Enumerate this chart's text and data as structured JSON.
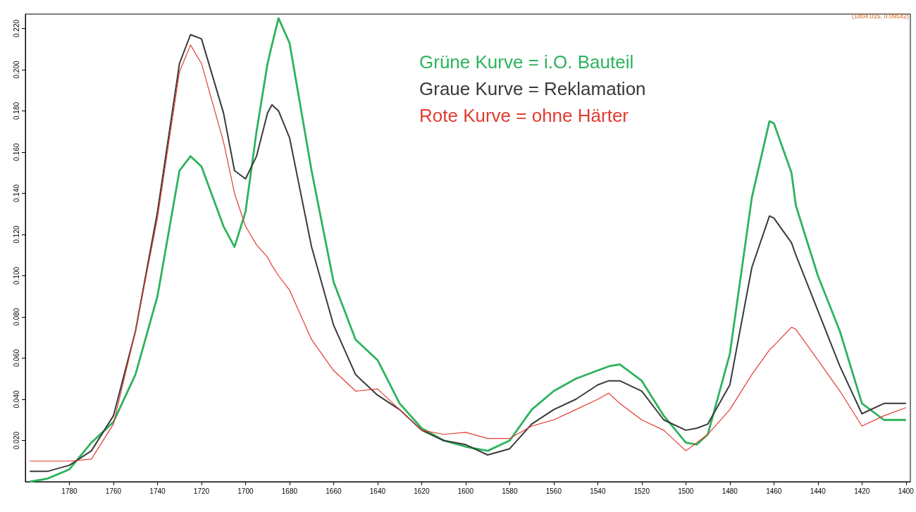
{
  "chart_data": {
    "type": "line",
    "x": [
      1798,
      1790,
      1780,
      1770,
      1760,
      1750,
      1740,
      1730,
      1725,
      1720,
      1710,
      1705,
      1700,
      1695,
      1690,
      1688,
      1685,
      1680,
      1670,
      1660,
      1650,
      1640,
      1630,
      1620,
      1610,
      1600,
      1590,
      1580,
      1570,
      1560,
      1550,
      1540,
      1535,
      1530,
      1520,
      1510,
      1500,
      1495,
      1490,
      1480,
      1470,
      1462,
      1460,
      1452,
      1450,
      1440,
      1430,
      1420,
      1410,
      1400
    ],
    "series": [
      {
        "name": "Grüne Kurve = i.O. Bauteil",
        "color": "#2db35d",
        "values": [
          0.0,
          0.0015,
          0.006,
          0.019,
          0.029,
          0.052,
          0.09,
          0.151,
          0.158,
          0.153,
          0.124,
          0.114,
          0.131,
          0.17,
          0.203,
          0.212,
          0.225,
          0.213,
          0.151,
          0.097,
          0.069,
          0.059,
          0.038,
          0.026,
          0.02,
          0.017,
          0.015,
          0.02,
          0.035,
          0.044,
          0.05,
          0.054,
          0.056,
          0.057,
          0.049,
          0.032,
          0.019,
          0.018,
          0.023,
          0.062,
          0.138,
          0.175,
          0.174,
          0.15,
          0.134,
          0.1,
          0.073,
          0.038,
          0.03,
          0.03
        ]
      },
      {
        "name": "Graue Kurve = Reklamation",
        "color": "#3a3a3a",
        "values": [
          0.005,
          0.005,
          0.008,
          0.015,
          0.032,
          0.073,
          0.131,
          0.203,
          0.217,
          0.215,
          0.179,
          0.151,
          0.147,
          0.158,
          0.179,
          0.183,
          0.18,
          0.167,
          0.114,
          0.076,
          0.052,
          0.042,
          0.035,
          0.025,
          0.02,
          0.018,
          0.013,
          0.016,
          0.028,
          0.035,
          0.04,
          0.047,
          0.049,
          0.049,
          0.044,
          0.03,
          0.025,
          0.026,
          0.028,
          0.047,
          0.104,
          0.129,
          0.128,
          0.116,
          0.11,
          0.083,
          0.056,
          0.033,
          0.038,
          0.038
        ]
      },
      {
        "name": "Rote Kurve = ohne Härter",
        "color": "#e03c31",
        "values": [
          0.01,
          0.01,
          0.01,
          0.011,
          0.028,
          0.073,
          0.128,
          0.199,
          0.212,
          0.203,
          0.165,
          0.14,
          0.124,
          0.115,
          0.109,
          0.105,
          0.1,
          0.093,
          0.069,
          0.054,
          0.044,
          0.045,
          0.035,
          0.025,
          0.023,
          0.024,
          0.021,
          0.021,
          0.027,
          0.03,
          0.035,
          0.04,
          0.043,
          0.038,
          0.03,
          0.025,
          0.015,
          0.019,
          0.023,
          0.035,
          0.052,
          0.064,
          0.066,
          0.075,
          0.074,
          0.059,
          0.044,
          0.027,
          0.032,
          0.036
        ]
      }
    ],
    "xlim": [
      1800,
      1398
    ],
    "xticks": [
      1780,
      1760,
      1740,
      1720,
      1700,
      1680,
      1660,
      1640,
      1620,
      1600,
      1580,
      1560,
      1540,
      1520,
      1500,
      1480,
      1460,
      1440,
      1420,
      1400
    ],
    "ylim": [
      0,
      0.227
    ],
    "yticks": [
      {
        "value": 0.02,
        "label": "0.020"
      },
      {
        "value": 0.04,
        "label": "0.040"
      },
      {
        "value": 0.06,
        "label": "0.060"
      },
      {
        "value": 0.08,
        "label": "0.080"
      },
      {
        "value": 0.1,
        "label": "0.100"
      },
      {
        "value": 0.12,
        "label": "0.120"
      },
      {
        "value": 0.14,
        "label": "0.140"
      },
      {
        "value": 0.16,
        "label": "0.160"
      },
      {
        "value": 0.18,
        "label": "0.180"
      },
      {
        "value": 0.2,
        "label": "0.200"
      },
      {
        "value": 0.22,
        "label": "0.220"
      }
    ],
    "annotations": [
      "(1804.015, 0.09542)"
    ],
    "legend": "top",
    "grid": false,
    "marker": "none"
  }
}
